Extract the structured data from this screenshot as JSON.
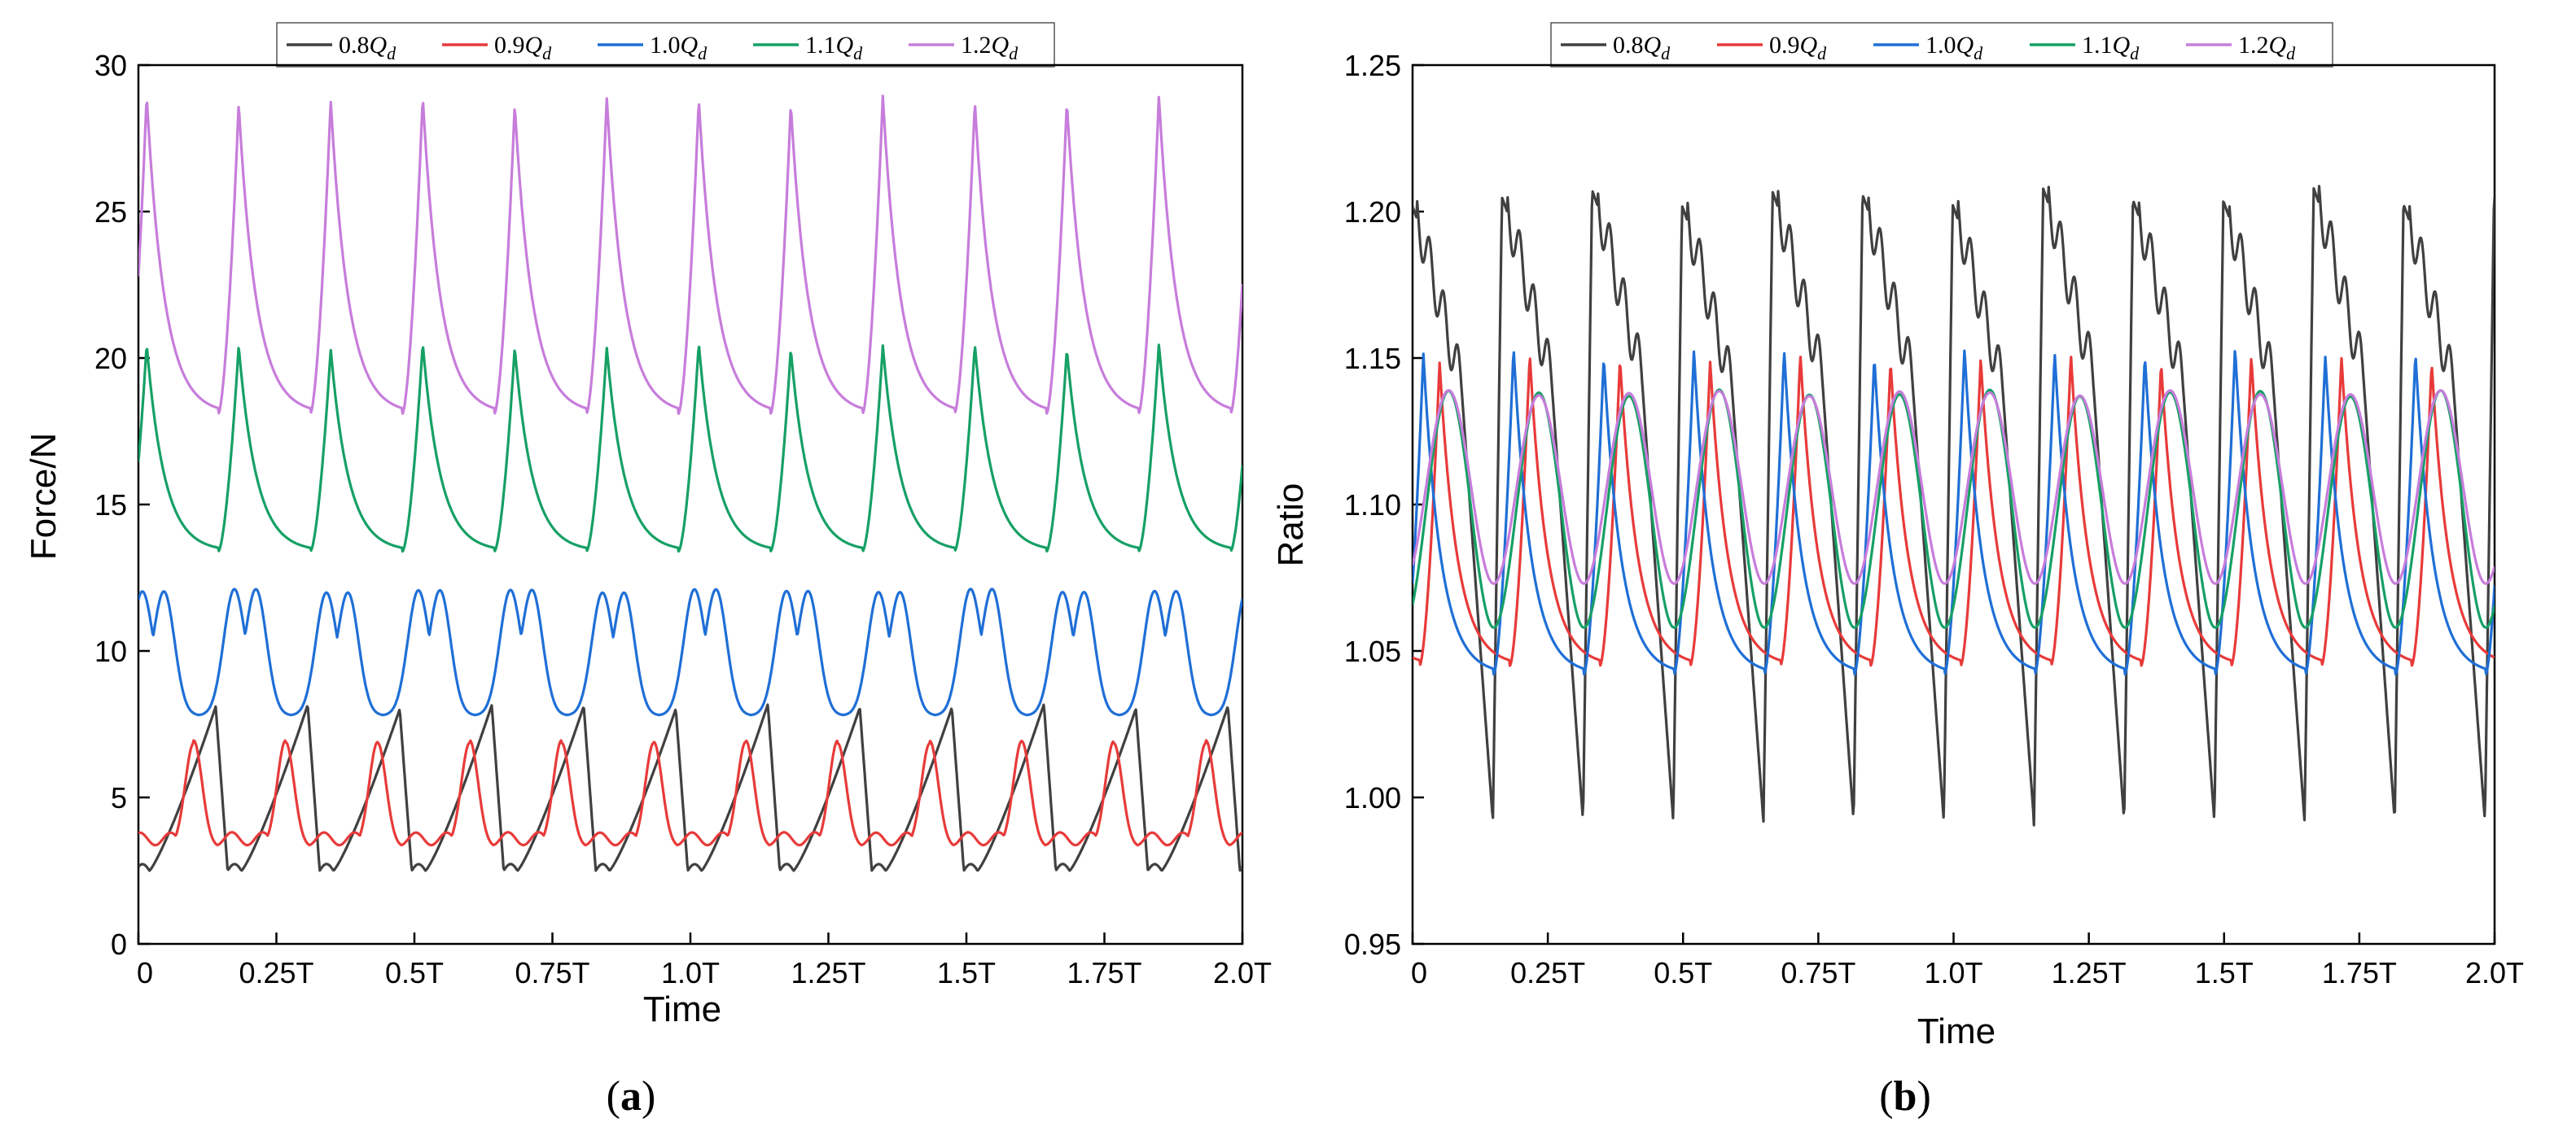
{
  "figure": {
    "caption_a": "a",
    "caption_b": "b"
  },
  "legend_subscript": "d",
  "chart_data": [
    {
      "id": "a",
      "type": "line",
      "title": "",
      "xlabel": "Time",
      "ylabel": "Force/N",
      "xlim": [
        0,
        2.0
      ],
      "ylim": [
        0,
        30
      ],
      "yticks": [
        0,
        5,
        10,
        15,
        20,
        25,
        30
      ],
      "ytick_labels": [
        "0",
        "5",
        "10",
        "15",
        "20",
        "25",
        "30"
      ],
      "xticks": [
        0,
        0.25,
        0.5,
        0.75,
        1.0,
        1.25,
        1.5,
        1.75,
        2.0
      ],
      "xtick_labels": [
        "0",
        "0.25T",
        "0.5T",
        "0.75T",
        "1.0T",
        "1.25T",
        "1.5T",
        "1.75T",
        "2.0T"
      ],
      "grid": false,
      "legend_position": "top",
      "series": [
        {
          "name": "0.8Q",
          "label_main": "0.8Q",
          "color": "#404040",
          "model": {
            "period": 0.1667,
            "phase": 0.02,
            "min": 2.5,
            "max": 8.1,
            "shape": "sawtooth"
          }
        },
        {
          "name": "0.9Q",
          "label_main": "0.9Q",
          "color": "#e83a3a",
          "model": {
            "period": 0.1667,
            "phase": 0.1,
            "min": 3.3,
            "max": 6.9,
            "shape": "pulse"
          }
        },
        {
          "name": "1.0Q",
          "label_main": "1.0Q",
          "color": "#1f6fd6",
          "model": {
            "period": 0.1667,
            "phase": 0.11,
            "min": 7.8,
            "max": 12.1,
            "shape": "double"
          }
        },
        {
          "name": "1.1Q",
          "label_main": "1.1Q",
          "color": "#16a065",
          "model": {
            "period": 0.1667,
            "phase": 0.145,
            "min": 13.4,
            "max": 20.4,
            "shape": "spike"
          }
        },
        {
          "name": "1.2Q",
          "label_main": "1.2Q",
          "color": "#c77ddb",
          "model": {
            "period": 0.1667,
            "phase": 0.145,
            "min": 18.1,
            "max": 28.8,
            "shape": "spike"
          }
        }
      ]
    },
    {
      "id": "b",
      "type": "line",
      "title": "",
      "xlabel": "Time",
      "ylabel": "Ratio",
      "xlim": [
        0,
        2.0
      ],
      "ylim": [
        0.95,
        1.25
      ],
      "yticks": [
        0.95,
        1.0,
        1.05,
        1.1,
        1.15,
        1.2,
        1.25
      ],
      "ytick_labels": [
        "0.95",
        "1.00",
        "1.05",
        "1.10",
        "1.15",
        "1.20",
        "1.25"
      ],
      "xticks": [
        0,
        0.25,
        0.5,
        0.75,
        1.0,
        1.25,
        1.5,
        1.75,
        2.0
      ],
      "xtick_labels": [
        "0",
        "0.25T",
        "0.5T",
        "0.75T",
        "1.0T",
        "1.25T",
        "1.5T",
        "1.75T",
        "2.0T"
      ],
      "grid": false,
      "legend_position": "top",
      "series": [
        {
          "name": "0.8Q",
          "label_main": "0.8Q",
          "color": "#404040",
          "model": {
            "period": 0.1667,
            "phase": 0.165,
            "min": 0.99,
            "max": 1.205,
            "shape": "ratio_drop"
          }
        },
        {
          "name": "0.9Q",
          "label_main": "0.9Q",
          "color": "#e83a3a",
          "model": {
            "period": 0.1667,
            "phase": 0.18,
            "min": 1.045,
            "max": 1.15,
            "shape": "spike"
          }
        },
        {
          "name": "1.0Q",
          "label_main": "1.0Q",
          "color": "#1f6fd6",
          "model": {
            "period": 0.1667,
            "phase": 0.15,
            "min": 1.042,
            "max": 1.152,
            "shape": "spike"
          }
        },
        {
          "name": "1.1Q",
          "label_main": "1.1Q",
          "color": "#16a065",
          "model": {
            "period": 0.1667,
            "phase": 0.15,
            "min": 1.058,
            "max": 1.138,
            "shape": "smooth"
          }
        },
        {
          "name": "1.2Q",
          "label_main": "1.2Q",
          "color": "#c77ddb",
          "model": {
            "period": 0.1667,
            "phase": 0.15,
            "min": 1.073,
            "max": 1.138,
            "shape": "smooth"
          }
        }
      ]
    }
  ]
}
